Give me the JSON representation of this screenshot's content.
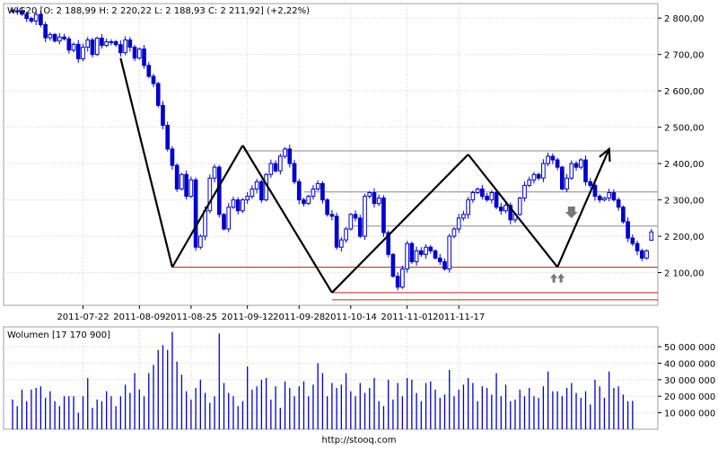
{
  "price_header": "WIG20 [O: 2 188,99  H: 2 220,22  L: 2 188,93  C: 2 211,92] (+2,22%)",
  "volume_header": "Wolumen [17 170 900]",
  "footer": "http://stooq.com",
  "colors": {
    "background": "#ffffff",
    "grid": "#d0d0d0",
    "candle": "#0000cc",
    "volume_bar": "#0000cc",
    "trend_line": "#000000",
    "resistance_line": "#888888",
    "support_line": "#cc2222",
    "arrow_marker": "#777777"
  },
  "chart_data": [
    {
      "type": "candlestick",
      "series_label": "WIG20",
      "ylim": [
        2010,
        2840
      ],
      "y_ticks": [
        2100,
        2200,
        2300,
        2400,
        2500,
        2600,
        2700,
        2800
      ],
      "y_tick_labels": [
        "2 100,00",
        "2 200,00",
        "2 300,00",
        "2 400,00",
        "2 500,00",
        "2 600,00",
        "2 700,00",
        "2 800,00"
      ],
      "x_tick_labels": [
        "2011-07-22",
        "2011-08-09",
        "2011-08-25",
        "2011-09-12",
        "2011-09-28",
        "2011-10-14",
        "2011-11-01",
        "2011-11-17"
      ],
      "x_tick_positions": [
        15,
        27,
        38,
        50,
        61,
        72,
        84,
        95
      ],
      "grid": true,
      "last_bar": {
        "open": 2188.99,
        "high": 2220.22,
        "low": 2188.93,
        "close": 2211.92,
        "change_pct": 2.22
      },
      "closes": [
        2818,
        2820,
        2811,
        2799,
        2792,
        2810,
        2782,
        2746,
        2755,
        2737,
        2748,
        2743,
        2712,
        2728,
        2688,
        2720,
        2740,
        2700,
        2745,
        2725,
        2735,
        2735,
        2727,
        2705,
        2740,
        2720,
        2690,
        2715,
        2670,
        2640,
        2620,
        2560,
        2505,
        2440,
        2395,
        2330,
        2370,
        2310,
        2355,
        2170,
        2200,
        2270,
        2360,
        2390,
        2260,
        2220,
        2280,
        2300,
        2270,
        2300,
        2310,
        2330,
        2350,
        2300,
        2370,
        2400,
        2380,
        2420,
        2440,
        2400,
        2350,
        2300,
        2290,
        2310,
        2330,
        2345,
        2300,
        2260,
        2255,
        2170,
        2190,
        2220,
        2260,
        2250,
        2200,
        2310,
        2320,
        2290,
        2305,
        2210,
        2150,
        2090,
        2060,
        2110,
        2180,
        2130,
        2160,
        2150,
        2170,
        2160,
        2140,
        2130,
        2110,
        2200,
        2220,
        2250,
        2260,
        2300,
        2320,
        2330,
        2310,
        2300,
        2320,
        2280,
        2270,
        2285,
        2245,
        2260,
        2305,
        2340,
        2355,
        2370,
        2360,
        2400,
        2420,
        2410,
        2390,
        2330,
        2360,
        2400,
        2390,
        2410,
        2350,
        2340,
        2310,
        2300,
        2305,
        2320,
        2300,
        2280,
        2240,
        2195,
        2180,
        2160,
        2140,
        2160,
        2211.92
      ],
      "trend_lines": [
        {
          "from": [
            23,
            2690
          ],
          "to": [
            34,
            2115
          ]
        },
        {
          "from": [
            34,
            2115
          ],
          "to": [
            49,
            2450
          ]
        },
        {
          "from": [
            49,
            2450
          ],
          "to": [
            68,
            2045
          ]
        },
        {
          "from": [
            68,
            2045
          ],
          "to": [
            97,
            2425
          ]
        },
        {
          "from": [
            97,
            2425
          ],
          "to": [
            116,
            2115
          ]
        },
        {
          "from": [
            116,
            2115
          ],
          "to": [
            127,
            2440
          ]
        }
      ],
      "horizontal_levels": [
        {
          "kind": "resistance",
          "value": 2435,
          "from_x": 49
        },
        {
          "kind": "resistance",
          "value": 2322,
          "from_x": 62
        },
        {
          "kind": "resistance",
          "value": 2228,
          "from_x": 72
        },
        {
          "kind": "support",
          "value": 2115,
          "from_x": 34
        },
        {
          "kind": "support",
          "value": 2045,
          "from_x": 68
        },
        {
          "kind": "support",
          "value": 2025,
          "from_x": 68
        }
      ],
      "markers": [
        {
          "kind": "down-arrow",
          "x": 119,
          "value": 2262
        },
        {
          "kind": "double-up-arrow",
          "x": 116,
          "value": 2085
        }
      ]
    },
    {
      "type": "bar",
      "series_label": "Wolumen",
      "ylim": [
        0,
        62000000
      ],
      "y_ticks": [
        10000000,
        20000000,
        30000000,
        40000000,
        50000000
      ],
      "y_tick_labels": [
        "10 000 000",
        "20 000 000",
        "30 000 000",
        "40 000 000",
        "50 000 000"
      ],
      "values": [
        18000000,
        14000000,
        24000000,
        17000000,
        24000000,
        25000000,
        26000000,
        19000000,
        23000000,
        17000000,
        14000000,
        20000000,
        20000000,
        20000000,
        10000000,
        20000000,
        31000000,
        13000000,
        18000000,
        17000000,
        23000000,
        20000000,
        14000000,
        20000000,
        27000000,
        22000000,
        34000000,
        24000000,
        20000000,
        34000000,
        39000000,
        48000000,
        51000000,
        48000000,
        59000000,
        41000000,
        33000000,
        23000000,
        18000000,
        25000000,
        30000000,
        22000000,
        16000000,
        20000000,
        58000000,
        28000000,
        22000000,
        20000000,
        14000000,
        17000000,
        38000000,
        24000000,
        26000000,
        30000000,
        31000000,
        18000000,
        26000000,
        13000000,
        29000000,
        25000000,
        20000000,
        26000000,
        29000000,
        20000000,
        27000000,
        40000000,
        34000000,
        20000000,
        28000000,
        25000000,
        27000000,
        34000000,
        23000000,
        20000000,
        28000000,
        22000000,
        25000000,
        31000000,
        17000000,
        14000000,
        30000000,
        18000000,
        28000000,
        20000000,
        31000000,
        30000000,
        22000000,
        17000000,
        28000000,
        29000000,
        24000000,
        19000000,
        21000000,
        36000000,
        20000000,
        24000000,
        27000000,
        31000000,
        28000000,
        17000000,
        26000000,
        25000000,
        21000000,
        34000000,
        20000000,
        27000000,
        17000000,
        18000000,
        24000000,
        20000000,
        25000000,
        20000000,
        19000000,
        26000000,
        35000000,
        23000000,
        23000000,
        20000000,
        25000000,
        28000000,
        22000000,
        19000000,
        23000000,
        15000000,
        30000000,
        26000000,
        19000000,
        35000000,
        25000000,
        26000000,
        21000000,
        17000000,
        17170900
      ]
    }
  ]
}
